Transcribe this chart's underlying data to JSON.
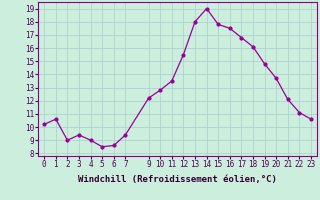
{
  "x": [
    0,
    1,
    2,
    3,
    4,
    5,
    6,
    7,
    9,
    10,
    11,
    12,
    13,
    14,
    15,
    16,
    17,
    18,
    19,
    20,
    21,
    22,
    23
  ],
  "y": [
    10.2,
    10.6,
    9.0,
    9.4,
    9.0,
    8.5,
    8.6,
    9.4,
    12.2,
    12.8,
    13.5,
    15.5,
    18.0,
    19.0,
    17.8,
    17.5,
    16.8,
    16.1,
    14.8,
    13.7,
    12.1,
    11.1,
    10.6
  ],
  "line_color": "#990099",
  "marker": "o",
  "marker_size": 2.0,
  "bg_color": "#cceedd",
  "grid_color": "#aacccc",
  "xlabel": "Windchill (Refroidissement éolien,°C)",
  "ylim": [
    7.8,
    19.5
  ],
  "xlim": [
    -0.5,
    23.5
  ],
  "yticks": [
    8,
    9,
    10,
    11,
    12,
    13,
    14,
    15,
    16,
    17,
    18,
    19
  ],
  "xticks": [
    0,
    1,
    2,
    3,
    4,
    5,
    6,
    7,
    9,
    10,
    11,
    12,
    13,
    14,
    15,
    16,
    17,
    18,
    19,
    20,
    21,
    22,
    23
  ],
  "tick_fontsize": 5.5,
  "xlabel_fontsize": 6.5,
  "spine_color": "#880088",
  "line_width": 0.9
}
